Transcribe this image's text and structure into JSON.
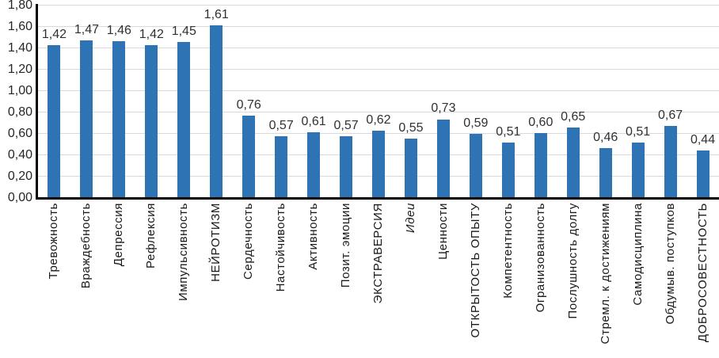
{
  "chart_data": {
    "type": "bar",
    "title": "",
    "xlabel": "",
    "ylabel": "",
    "categories": [
      "Тревожность",
      "Враждебность",
      "Депрессия",
      "Рефлексия",
      "Импульсивность",
      "НЕЙРОТИЗМ",
      "Сердечность",
      "Настойчивость",
      "Активность",
      "Позит. эмоции",
      "ЭКСТРАВЕРСИЯ",
      "Идеи",
      "Ценности",
      "ОТКРЫТОСТЬ ОПЫТУ",
      "Компетентность",
      "Огранизованность",
      "Послушность долгу",
      "Стремл. к достижениям",
      "Самодисциплина",
      "Обдумыв. поступков",
      "ДОБРОСОВЕСТНОСТЬ"
    ],
    "values": [
      1.42,
      1.47,
      1.46,
      1.42,
      1.45,
      1.61,
      0.76,
      0.57,
      0.61,
      0.57,
      0.62,
      0.55,
      0.73,
      0.59,
      0.51,
      0.6,
      0.65,
      0.46,
      0.51,
      0.67,
      0.44
    ],
    "value_labels": [
      "1,42",
      "1,47",
      "1,46",
      "1,42",
      "1,45",
      "1,61",
      "0,76",
      "0,57",
      "0,61",
      "0,57",
      "0,62",
      "0,55",
      "0,73",
      "0,59",
      "0,51",
      "0,60",
      "0,65",
      "0,46",
      "0,51",
      "0,67",
      "0,44"
    ],
    "italic_category_indexes": [
      11
    ],
    "y_ticks": [
      "1,80",
      "1,60",
      "1,40",
      "1,20",
      "1,00",
      "0,80",
      "0,60",
      "0,40",
      "0,20",
      "0,00"
    ],
    "ylim": [
      0,
      1.8
    ],
    "grid": true,
    "legend": "none",
    "bar_color": "#2e74b5",
    "gridline_color": "#d9d9d9",
    "axis_color": "#000000",
    "text_color": "#262626"
  }
}
